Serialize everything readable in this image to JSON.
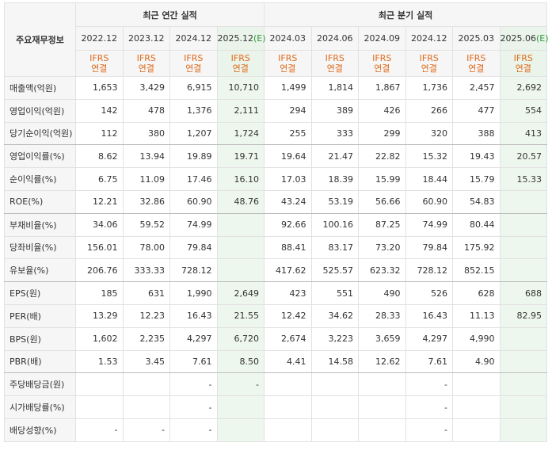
{
  "corner_label": "주요재무정보",
  "groups": {
    "annual": "최근 연간 실적",
    "quarterly": "최근 분기 실적"
  },
  "periods": [
    "2022.12",
    "2023.12",
    "2024.12",
    "2025.12",
    "2024.03",
    "2024.06",
    "2024.09",
    "2024.12",
    "2025.03",
    "2025.06"
  ],
  "estimate_mark": "(E)",
  "basis": {
    "line1": "IFRS",
    "line2": "연결"
  },
  "rows": [
    {
      "label": "매출액(억원)",
      "values": [
        "1,653",
        "3,429",
        "6,915",
        "10,710",
        "1,499",
        "1,814",
        "1,867",
        "1,736",
        "2,457",
        "2,692"
      ]
    },
    {
      "label": "영업이익(억원)",
      "values": [
        "142",
        "478",
        "1,376",
        "2,111",
        "294",
        "389",
        "426",
        "266",
        "477",
        "554"
      ]
    },
    {
      "label": "당기순이익(억원)",
      "values": [
        "112",
        "380",
        "1,207",
        "1,724",
        "255",
        "333",
        "299",
        "320",
        "388",
        "413"
      ]
    },
    {
      "label": "영업이익률(%)",
      "values": [
        "8.62",
        "13.94",
        "19.89",
        "19.71",
        "19.64",
        "21.47",
        "22.82",
        "15.32",
        "19.43",
        "20.57"
      ]
    },
    {
      "label": "순이익률(%)",
      "values": [
        "6.75",
        "11.09",
        "17.46",
        "16.10",
        "17.03",
        "18.39",
        "15.99",
        "18.44",
        "15.79",
        "15.33"
      ]
    },
    {
      "label": "ROE(%)",
      "values": [
        "12.21",
        "32.86",
        "60.90",
        "48.76",
        "43.24",
        "53.19",
        "56.66",
        "60.90",
        "54.83",
        ""
      ]
    },
    {
      "label": "부채비율(%)",
      "values": [
        "34.06",
        "59.52",
        "74.99",
        "",
        "92.66",
        "100.16",
        "87.25",
        "74.99",
        "80.44",
        ""
      ]
    },
    {
      "label": "당좌비율(%)",
      "values": [
        "156.01",
        "78.00",
        "79.84",
        "",
        "88.41",
        "83.17",
        "73.20",
        "79.84",
        "175.92",
        ""
      ]
    },
    {
      "label": "유보율(%)",
      "values": [
        "206.76",
        "333.33",
        "728.12",
        "",
        "417.62",
        "525.57",
        "623.32",
        "728.12",
        "852.15",
        ""
      ]
    },
    {
      "label": "EPS(원)",
      "values": [
        "185",
        "631",
        "1,990",
        "2,649",
        "423",
        "551",
        "490",
        "526",
        "628",
        "688"
      ]
    },
    {
      "label": "PER(배)",
      "values": [
        "13.29",
        "12.23",
        "16.43",
        "21.55",
        "12.42",
        "34.62",
        "28.33",
        "16.43",
        "11.13",
        "82.95"
      ]
    },
    {
      "label": "BPS(원)",
      "values": [
        "1,602",
        "2,235",
        "4,297",
        "6,720",
        "2,674",
        "3,223",
        "3,659",
        "4,297",
        "4,990",
        ""
      ]
    },
    {
      "label": "PBR(배)",
      "values": [
        "1.53",
        "3.45",
        "7.61",
        "8.50",
        "4.41",
        "14.58",
        "12.62",
        "7.61",
        "4.90",
        ""
      ]
    },
    {
      "label": "주당배당금(원)",
      "values": [
        "",
        "",
        "-",
        "-",
        "",
        "",
        "",
        "-",
        "",
        ""
      ]
    },
    {
      "label": "시가배당률(%)",
      "values": [
        "",
        "",
        "-",
        "",
        "",
        "",
        "",
        "-",
        "",
        ""
      ]
    },
    {
      "label": "배당성향(%)",
      "values": [
        "-",
        "-",
        "-",
        "",
        "",
        "",
        "",
        "-",
        "",
        ""
      ]
    }
  ]
}
